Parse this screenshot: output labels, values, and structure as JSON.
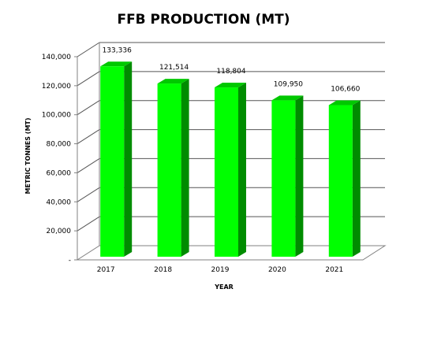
{
  "chart_data": {
    "type": "bar",
    "title": "FFB PRODUCTION (MT)",
    "xlabel": "YEAR",
    "ylabel": "METRIC TONNES (MT)",
    "categories": [
      "2017",
      "2018",
      "2019",
      "2020",
      "2021"
    ],
    "values": [
      133336,
      121514,
      118804,
      109950,
      106660
    ],
    "data_labels": [
      "133,336",
      "121,514",
      "118,804",
      "109,950",
      "106,660"
    ],
    "ylim": [
      0,
      140000
    ],
    "yticks": [
      0,
      20000,
      40000,
      60000,
      80000,
      100000,
      120000,
      140000
    ],
    "ytick_labels": [
      "-",
      "20,000",
      "40,000",
      "60,000",
      "80,000",
      "100,000",
      "120,000",
      "140,000"
    ],
    "grid": true,
    "legend": "none",
    "colors": {
      "bar_front": "#00ff00",
      "bar_side": "#008c00",
      "bar_top": "#00c800",
      "gridline": "#555555",
      "axis": "#808080"
    }
  }
}
